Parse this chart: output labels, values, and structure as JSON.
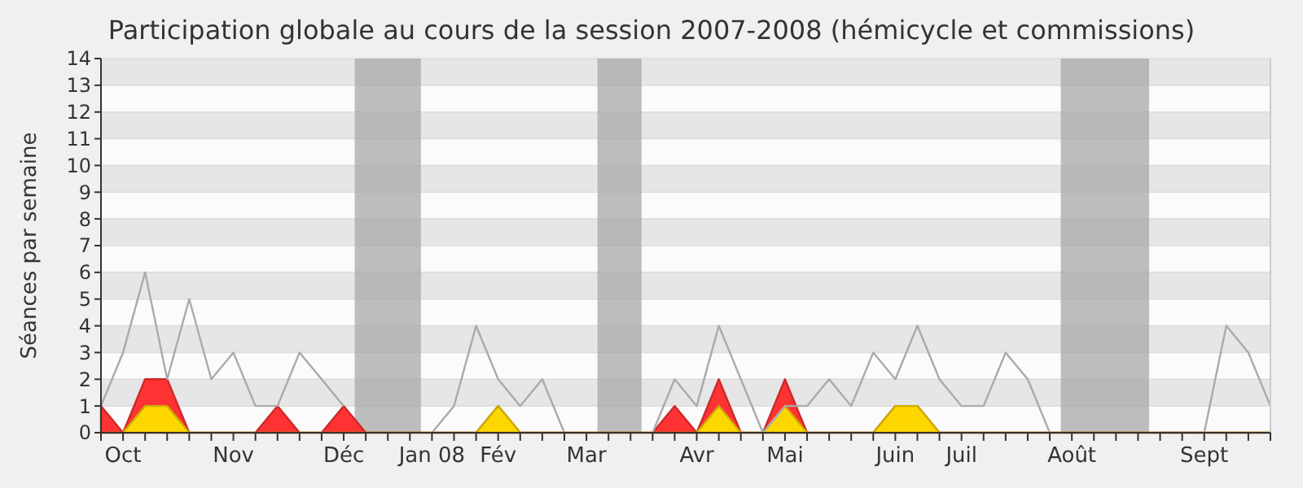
{
  "chart_data": {
    "type": "area",
    "title": "Participation globale au cours de la session 2007-2008 (hémicycle et commissions)",
    "ylabel": "Séances par semaine",
    "categories": [
      null,
      "Oct",
      null,
      null,
      null,
      null,
      "Nov",
      null,
      null,
      null,
      null,
      "Déc",
      null,
      null,
      null,
      "Jan 08",
      null,
      null,
      "Fév",
      null,
      null,
      null,
      "Mar",
      null,
      null,
      null,
      null,
      "Avr",
      null,
      null,
      null,
      "Mai",
      null,
      null,
      null,
      null,
      "Juin",
      null,
      null,
      "Juil",
      null,
      null,
      null,
      null,
      "Août",
      null,
      null,
      null,
      null,
      null,
      "Sept",
      null,
      null,
      null
    ],
    "ylim": [
      0,
      14
    ],
    "yticks": [
      0,
      1,
      2,
      3,
      4,
      5,
      6,
      7,
      8,
      9,
      10,
      11,
      12,
      13,
      14
    ],
    "grid": "y",
    "series": [
      {
        "color": "#ff3333",
        "values": [
          1,
          0,
          2,
          2,
          0,
          0,
          0,
          0,
          1,
          0,
          0,
          1,
          0,
          0,
          0,
          0,
          0,
          0,
          1,
          0,
          0,
          0,
          0,
          0,
          0,
          0,
          1,
          0,
          2,
          0,
          0,
          2,
          0,
          0,
          0,
          0,
          1,
          1,
          0,
          0,
          0,
          0,
          0,
          0,
          0,
          0,
          0,
          0,
          0,
          0,
          0,
          0,
          0,
          0
        ]
      },
      {
        "color": "#ffd700",
        "values": [
          0,
          0,
          1,
          1,
          0,
          0,
          0,
          0,
          0,
          0,
          0,
          0,
          0,
          0,
          0,
          0,
          0,
          0,
          1,
          0,
          0,
          0,
          0,
          0,
          0,
          0,
          0,
          0,
          1,
          0,
          0,
          1,
          0,
          0,
          0,
          0,
          1,
          1,
          0,
          0,
          0,
          0,
          0,
          0,
          0,
          0,
          0,
          0,
          0,
          0,
          0,
          0,
          0,
          0
        ]
      },
      {
        "type": "line",
        "color": "#aaaaaa",
        "values": [
          1,
          3,
          6,
          2,
          5,
          2,
          3,
          1,
          1,
          3,
          2,
          1,
          null,
          null,
          null,
          0,
          1,
          4,
          2,
          1,
          2,
          0,
          null,
          null,
          null,
          0,
          2,
          1,
          4,
          2,
          0,
          1,
          1,
          2,
          1,
          3,
          2,
          4,
          2,
          1,
          1,
          3,
          2,
          0,
          null,
          null,
          null,
          null,
          0,
          0,
          0,
          4,
          3,
          1
        ]
      }
    ]
  }
}
